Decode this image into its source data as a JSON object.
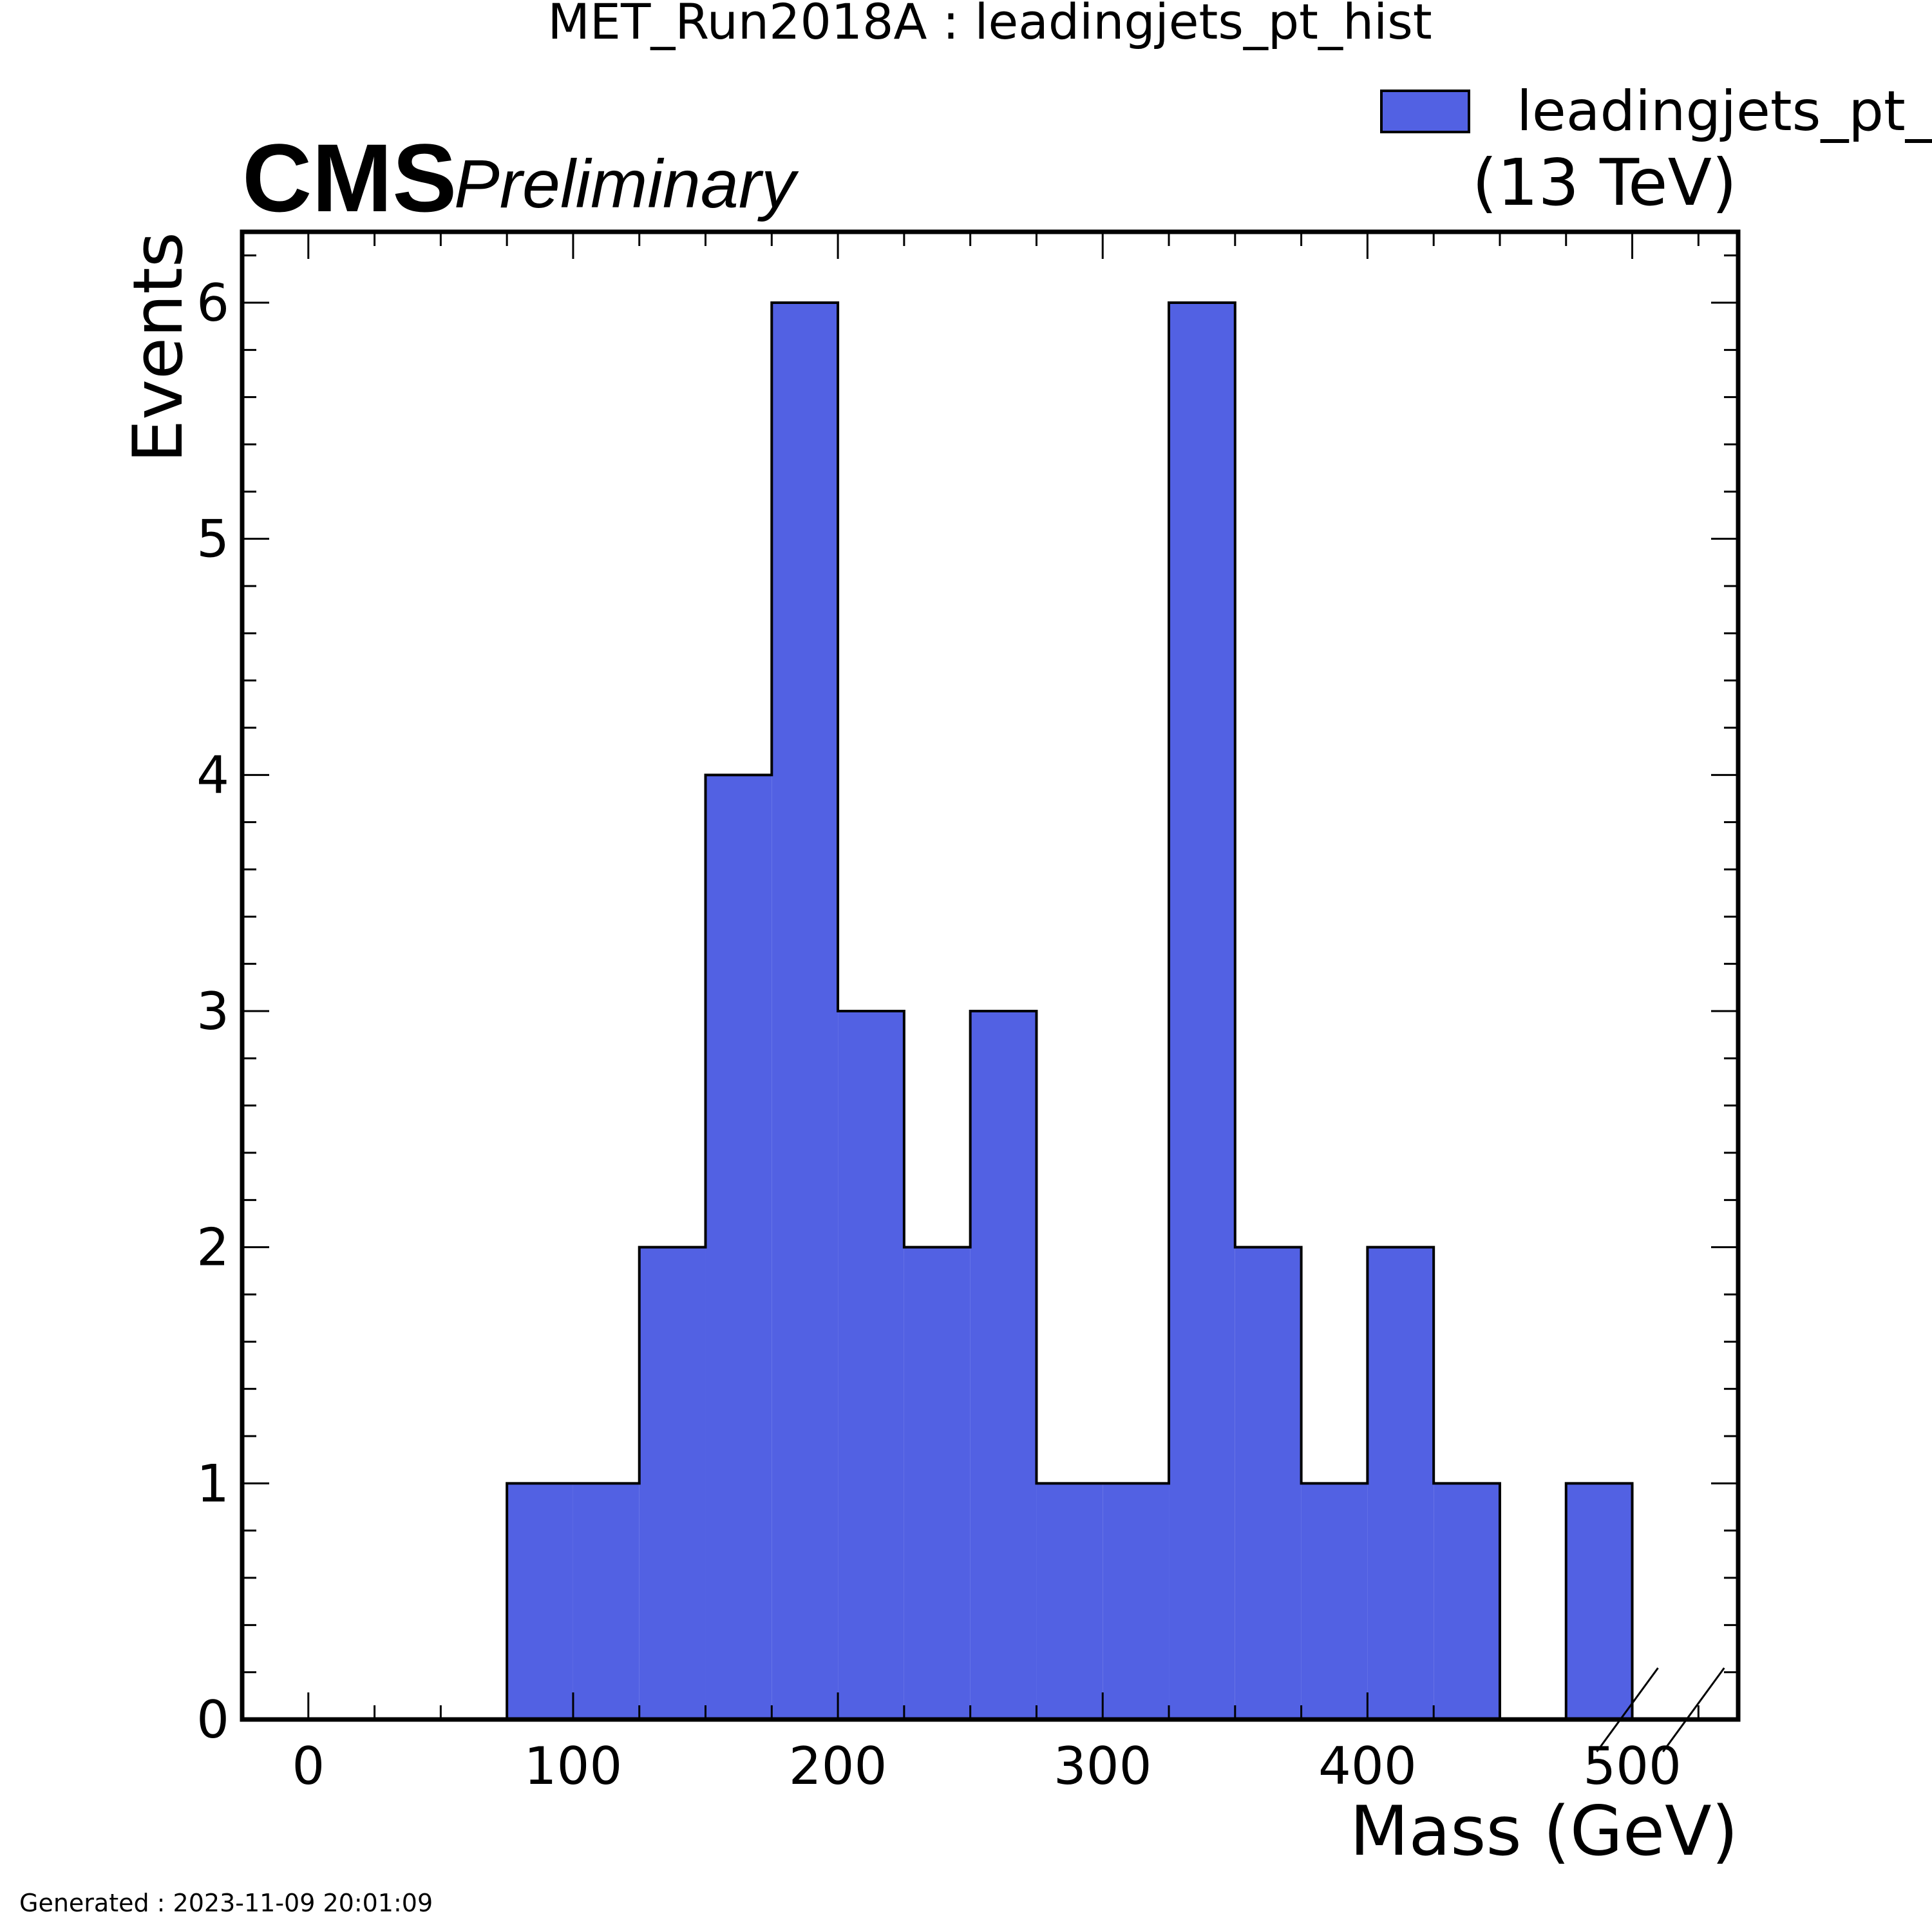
{
  "figure": {
    "title": "MET_Run2018A : leadingjets_pt_hist",
    "experiment": "CMS",
    "status": "Preliminary",
    "energy": "(13 TeV)",
    "footer": "Generated : 2023-11-09 20:01:09"
  },
  "legend": {
    "label": "leadingjets_pt_hist",
    "placement": "top-right"
  },
  "chart_data": {
    "type": "bar",
    "histogram": true,
    "xlabel": "Mass (GeV)",
    "ylabel": "Events",
    "xlim": [
      -25,
      540
    ],
    "ylim": [
      0,
      6.3
    ],
    "x_ticks": [
      0,
      100,
      200,
      300,
      400,
      500
    ],
    "y_ticks": [
      0,
      1,
      2,
      3,
      4,
      5,
      6
    ],
    "bin_edges": [
      0,
      25,
      50,
      75,
      100,
      125,
      150,
      175,
      200,
      225,
      250,
      275,
      300,
      325,
      350,
      375,
      400,
      425,
      450,
      475,
      500
    ],
    "series": [
      {
        "name": "leadingjets_pt_hist",
        "color": "#5261e3",
        "values": [
          0,
          0,
          0,
          1,
          1,
          2,
          4,
          6,
          3,
          2,
          3,
          1,
          1,
          6,
          2,
          1,
          2,
          1,
          0,
          1
        ]
      }
    ],
    "overflow_marker": true,
    "grid": false
  }
}
